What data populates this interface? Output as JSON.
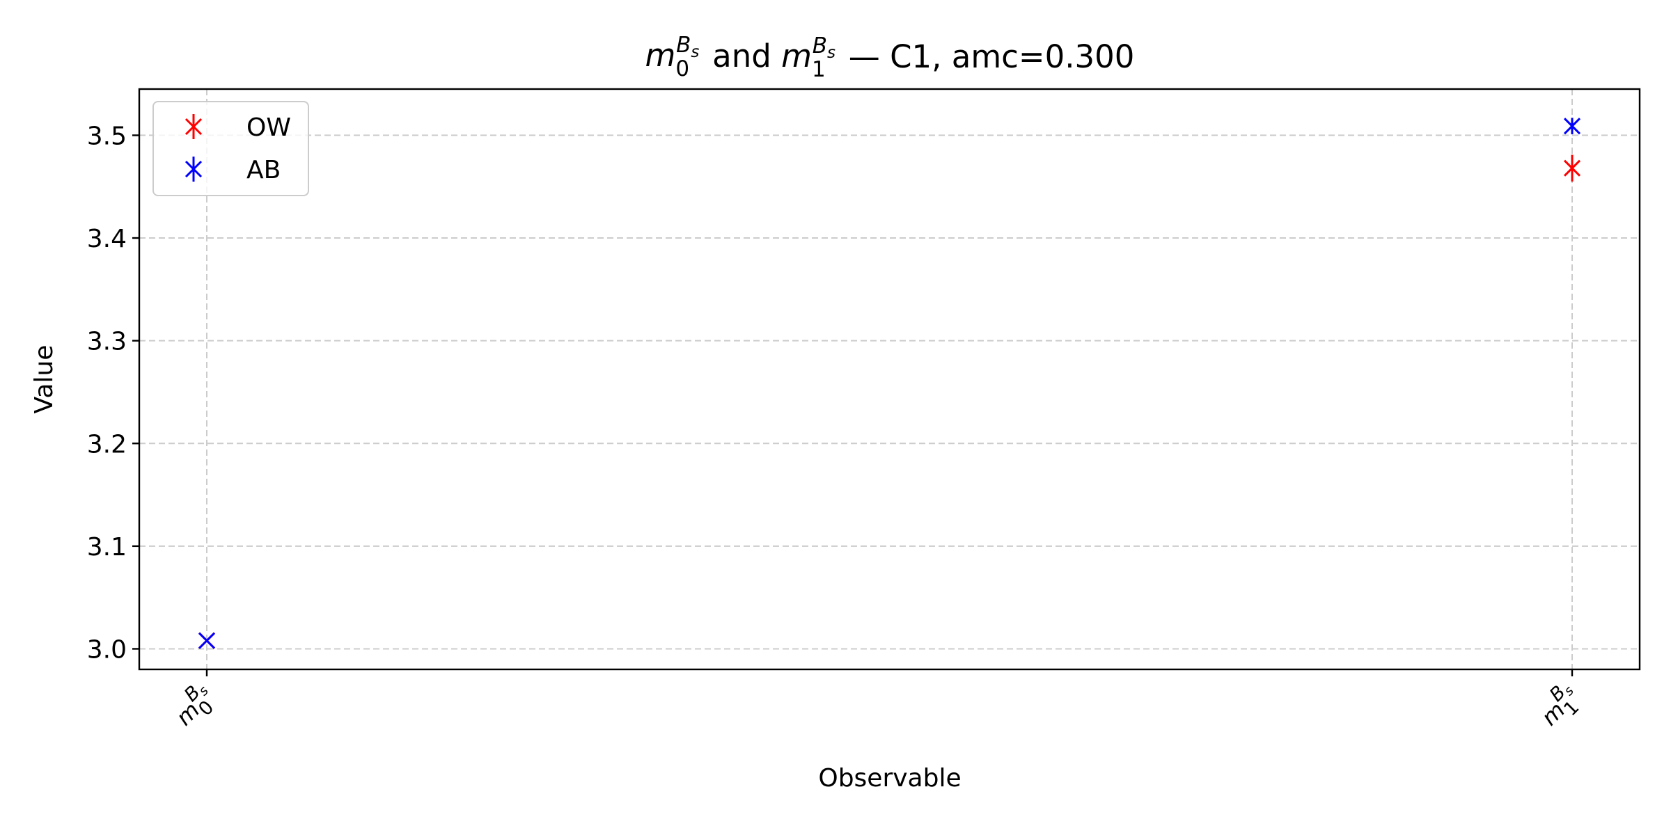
{
  "chart_data": {
    "type": "scatter",
    "title": {
      "obs0": {
        "base": "m",
        "sub": "0",
        "sup_base": "B",
        "sup_sub": "s"
      },
      "mid": " and ",
      "obs1": {
        "base": "m",
        "sub": "1",
        "sup_base": "B",
        "sup_sub": "s"
      },
      "suffix": " — C1, amc=0.300"
    },
    "xlabel": "Observable",
    "ylabel": "Value",
    "categories": [
      {
        "base": "m",
        "sub": "0",
        "sup_base": "B",
        "sup_sub": "s"
      },
      {
        "base": "m",
        "sub": "1",
        "sup_base": "B",
        "sup_sub": "s"
      }
    ],
    "ylim": [
      2.98,
      3.545
    ],
    "yticks": [
      "3.0",
      "3.1",
      "3.2",
      "3.3",
      "3.4",
      "3.5"
    ],
    "grid": true,
    "legend_position": "upper-left",
    "marker": "x",
    "series": [
      {
        "name": "OW",
        "color": "#ff0000",
        "values": [
          3.008,
          3.468
        ],
        "errors": [
          0.001,
          0.013
        ]
      },
      {
        "name": "AB",
        "color": "#0000ff",
        "values": [
          3.008,
          3.509
        ],
        "errors": [
          0.001,
          0.008
        ]
      }
    ]
  }
}
